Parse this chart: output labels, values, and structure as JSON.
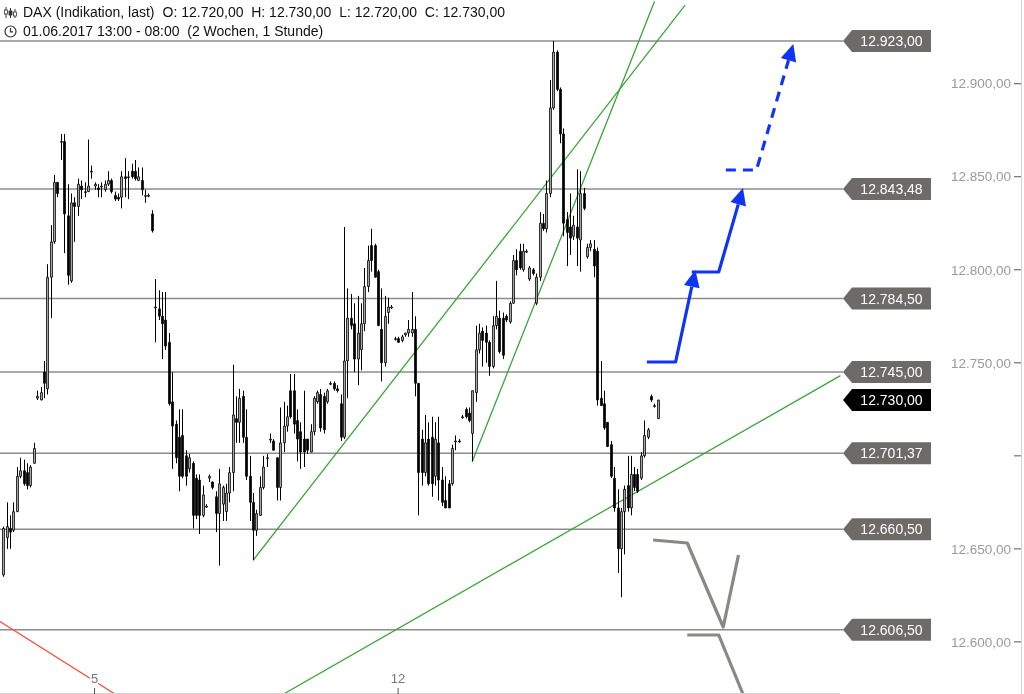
{
  "chart_data": {
    "type": "candlestick",
    "title": "DAX (Indikation, last)",
    "subtitle": "01.06.2017 13:00 - 08:00  (2 Wochen, 1 Stunde)",
    "annotations": [
      "O: 12.720,00  H: 12.730,00  L: 12.720,00  C: 12.730,00",
      "12.730,00"
    ],
    "color": "#000000",
    "x": [
      2.9,
      2.98,
      3.06,
      3.13,
      3.21,
      3.29,
      3.37,
      3.44,
      3.52,
      3.6,
      3.68,
      3.76,
      3.83,
      3.91,
      3.99,
      4.07,
      4.14,
      4.22,
      4.3,
      4.38,
      4.46,
      4.53,
      4.61,
      4.69,
      4.77,
      4.84,
      4.92,
      5.0,
      5.08,
      5.16,
      5.23,
      5.31,
      5.39,
      5.47,
      5.54,
      5.62,
      5.7,
      5.78,
      5.86,
      5.93,
      6.01,
      6.09,
      6.17,
      6.24,
      6.32,
      6.4,
      6.48,
      6.56,
      6.63,
      6.71,
      6.79,
      6.87,
      6.94,
      7.02,
      7.1,
      7.18,
      7.26,
      7.33,
      7.41,
      7.49,
      7.57,
      7.64,
      7.72,
      7.8,
      7.88,
      7.96,
      8.03,
      8.11,
      8.19,
      8.27,
      8.34,
      8.42,
      8.5,
      8.58,
      8.66,
      8.73,
      8.81,
      8.89,
      8.97,
      9.04,
      9.12,
      9.2,
      9.28,
      9.36,
      9.43,
      9.51,
      9.59,
      9.67,
      9.74,
      9.82,
      9.9,
      9.98,
      10.06,
      10.13,
      10.21,
      10.29,
      10.37,
      10.44,
      10.52,
      10.6,
      10.68,
      10.76,
      10.83,
      10.91,
      10.99,
      11.07,
      11.14,
      11.22,
      11.3,
      11.38,
      11.46,
      11.53,
      11.61,
      11.69,
      11.77,
      11.84,
      11.92,
      12.0,
      12.08,
      12.16,
      12.23,
      12.31,
      12.39,
      12.47,
      12.54,
      12.62,
      12.7,
      12.78,
      12.86,
      12.93,
      13.01,
      13.09,
      13.17,
      13.24,
      13.32,
      13.4,
      13.48,
      13.56,
      13.63,
      13.71,
      13.79,
      13.87,
      13.94,
      14.02,
      14.1,
      14.18,
      14.26,
      14.33,
      14.41,
      14.49,
      14.57,
      14.64,
      14.72,
      14.8,
      14.88,
      14.96,
      15.03,
      15.11,
      15.19,
      15.27,
      15.34,
      15.42,
      15.5,
      15.58,
      15.66,
      15.73,
      15.81,
      15.89,
      15.97,
      16.04,
      16.12,
      16.2,
      16.28,
      16.36,
      16.43,
      16.51,
      16.59,
      16.67,
      16.74,
      16.82,
      16.9,
      16.98,
      17.06,
      17.13,
      17.21,
      17.29,
      17.37,
      17.44,
      17.52,
      17.6,
      17.68,
      17.76,
      17.83,
      17.91,
      17.99
    ],
    "ohlc": [
      [
        12636,
        12662,
        12635,
        12661
      ],
      [
        12656,
        12675,
        12650,
        12662
      ],
      [
        12661,
        12668,
        12650,
        12659
      ],
      [
        12660,
        12675,
        12659,
        12670
      ],
      [
        12670,
        12694,
        12670,
        12689
      ],
      [
        12689,
        12699,
        12688,
        12692
      ],
      [
        12692,
        12698,
        12684,
        12685
      ],
      [
        12691,
        12696,
        12682,
        12684
      ],
      [
        12684,
        12695,
        12683,
        12694
      ],
      [
        12696,
        12707,
        12696,
        12704
      ],
      [
        12731,
        12735,
        12730,
        12732
      ],
      [
        12730,
        12737,
        12730,
        12734
      ],
      [
        12745,
        12751,
        12731,
        12739
      ],
      [
        12736,
        12803,
        12733,
        12796
      ],
      [
        12796,
        12824,
        12774,
        12815
      ],
      [
        12815,
        12851,
        12814,
        12847
      ],
      [
        12847,
        12847,
        12839,
        12841
      ],
      [
        12869,
        12873,
        12859,
        12869
      ],
      [
        12869,
        12873,
        12809,
        12830
      ],
      [
        12829,
        12846,
        12792,
        12797
      ],
      [
        12794,
        12841,
        12793,
        12836
      ],
      [
        12836,
        12839,
        12815,
        12834
      ],
      [
        12834,
        12849,
        12829,
        12846
      ],
      [
        12845,
        12848,
        12838,
        12843
      ],
      [
        12842,
        12847,
        12839,
        12842
      ],
      [
        12842,
        12870,
        12842,
        12845
      ],
      [
        12853,
        12856,
        12849,
        12853
      ],
      [
        12845,
        12847,
        12843,
        12846
      ],
      [
        12844,
        12846,
        12839,
        12843
      ],
      [
        12845,
        12847,
        12839,
        12845
      ],
      [
        12843,
        12848,
        12842,
        12846
      ],
      [
        12846,
        12853,
        12845,
        12848
      ],
      [
        12848,
        12849,
        12841,
        12842
      ],
      [
        12840,
        12842,
        12837,
        12838
      ],
      [
        12839,
        12841,
        12837,
        12838
      ],
      [
        12839,
        12853,
        12833,
        12850
      ],
      [
        12850,
        12860,
        12839,
        12849
      ],
      [
        12850,
        12853,
        12838,
        12850
      ],
      [
        12853,
        12857,
        12849,
        12850
      ],
      [
        12853,
        12859,
        12848,
        12849
      ],
      [
        12848,
        12855,
        12848,
        12850
      ],
      [
        12848,
        12855,
        12840,
        12843
      ],
      [
        12840,
        12843,
        12836,
        12840
      ],
      [
        12840,
        12841,
        12839,
        12840
      ],
      [
        12830,
        12832,
        12820,
        12821
      ],
      [
        12780,
        12795,
        12761,
        12780
      ],
      [
        12779,
        12789,
        12773,
        12775
      ],
      [
        12775,
        12788,
        12752,
        12771
      ],
      [
        12773,
        12788,
        12757,
        12759
      ],
      [
        12761,
        12766,
        12727,
        12728
      ],
      [
        12729,
        12745,
        12693,
        12716
      ],
      [
        12717,
        12719,
        12696,
        12699
      ],
      [
        12710,
        12725,
        12681,
        12689
      ],
      [
        12711,
        12725,
        12688,
        12689
      ],
      [
        12700,
        12703,
        12684,
        12689
      ],
      [
        12693,
        12701,
        12691,
        12699
      ],
      [
        12696,
        12697,
        12661,
        12668
      ],
      [
        12688,
        12690,
        12666,
        12668
      ],
      [
        12687,
        12690,
        12658,
        12668
      ],
      [
        12668,
        12684,
        12667,
        12679
      ],
      [
        12673,
        12674,
        12672,
        12673
      ],
      [
        12688,
        12690,
        12686,
        12689
      ],
      [
        12686,
        12686,
        12682,
        12683
      ],
      [
        12678,
        12681,
        12659,
        12669
      ],
      [
        12669,
        12693,
        12641,
        12685
      ],
      [
        12674,
        12684,
        12665,
        12683
      ],
      [
        12670,
        12685,
        12665,
        12680
      ],
      [
        12680,
        12694,
        12675,
        12691
      ],
      [
        12691,
        12749,
        12681,
        12722
      ],
      [
        12720,
        12732,
        12707,
        12718
      ],
      [
        12718,
        12736,
        12707,
        12731
      ],
      [
        12732,
        12735,
        12707,
        12710
      ],
      [
        12710,
        12725,
        12687,
        12689
      ],
      [
        12689,
        12700,
        12665,
        12675
      ],
      [
        12675,
        12680,
        12644,
        12660
      ],
      [
        12660,
        12671,
        12657,
        12669
      ],
      [
        12668,
        12689,
        12668,
        12683
      ],
      [
        12683,
        12700,
        12682,
        12694
      ],
      [
        12699,
        12701,
        12694,
        12699
      ],
      [
        12709,
        12712,
        12707,
        12709
      ],
      [
        12708,
        12709,
        12703,
        12703
      ],
      [
        12699,
        12699,
        12676,
        12683
      ],
      [
        12683,
        12726,
        12676,
        12707
      ],
      [
        12707,
        12729,
        12702,
        12716
      ],
      [
        12716,
        12727,
        12713,
        12721
      ],
      [
        12735,
        12744,
        12720,
        12721
      ],
      [
        12735,
        12744,
        12712,
        12717
      ],
      [
        12719,
        12725,
        12697,
        12709
      ],
      [
        12713,
        12718,
        12693,
        12702
      ],
      [
        12709,
        12735,
        12694,
        12702
      ],
      [
        12709,
        12709,
        12701,
        12703
      ],
      [
        12702,
        12717,
        12702,
        12713
      ],
      [
        12713,
        12732,
        12711,
        12731
      ],
      [
        12729,
        12735,
        12728,
        12734
      ],
      [
        12733,
        12736,
        12713,
        12715
      ],
      [
        12732,
        12734,
        12712,
        12714
      ],
      [
        12729,
        12736,
        12728,
        12735
      ],
      [
        12739,
        12740,
        12738,
        12739
      ],
      [
        12739,
        12740,
        12735,
        12736
      ],
      [
        12736,
        12738,
        12734,
        12735
      ],
      [
        12728,
        12733,
        12708,
        12710
      ],
      [
        12710,
        12823,
        12709,
        12751
      ],
      [
        12751,
        12790,
        12731,
        12774
      ],
      [
        12774,
        12787,
        12768,
        12770
      ],
      [
        12771,
        12782,
        12745,
        12752
      ],
      [
        12752,
        12786,
        12738,
        12766
      ],
      [
        12757,
        12782,
        12746,
        12771
      ],
      [
        12771,
        12801,
        12767,
        12791
      ],
      [
        12791,
        12813,
        12788,
        12805
      ],
      [
        12813,
        12822,
        12799,
        12805
      ],
      [
        12813,
        12814,
        12796,
        12796
      ],
      [
        12799,
        12800,
        12770,
        12770
      ],
      [
        12768,
        12790,
        12740,
        12750
      ],
      [
        12750,
        12786,
        12748,
        12775
      ],
      [
        12777,
        12785,
        12771,
        12780
      ],
      [
        12780,
        12781,
        12779,
        12780
      ],
      [
        12763,
        12764,
        12762,
        12763
      ],
      [
        12763,
        12764,
        12761,
        12761
      ],
      [
        12762,
        12765,
        12761,
        12764
      ],
      [
        12765,
        12766,
        12764,
        12766
      ],
      [
        12766,
        12773,
        12764,
        12768
      ],
      [
        12766,
        12788,
        12764,
        12768
      ],
      [
        12768,
        12775,
        12732,
        12739
      ],
      [
        12739,
        12739,
        12668,
        12691
      ],
      [
        12709,
        12714,
        12684,
        12691
      ],
      [
        12691,
        12722,
        12689,
        12707
      ],
      [
        12709,
        12718,
        12684,
        12685
      ],
      [
        12710,
        12721,
        12678,
        12685
      ],
      [
        12689,
        12718,
        12684,
        12709
      ],
      [
        12707,
        12721,
        12676,
        12687
      ],
      [
        12687,
        12694,
        12673,
        12675
      ],
      [
        12676,
        12689,
        12672,
        12672
      ],
      [
        12685,
        12687,
        12672,
        12672
      ],
      [
        12685,
        12706,
        12684,
        12704
      ],
      [
        12708,
        12711,
        12703,
        12708
      ],
      [
        12708,
        12709,
        12707,
        12708
      ],
      [
        12721,
        12722,
        12720,
        12721
      ],
      [
        12725,
        12726,
        12720,
        12721
      ],
      [
        12723,
        12726,
        12718,
        12719
      ],
      [
        12712,
        12735,
        12697,
        12735
      ],
      [
        12734,
        12770,
        12729,
        12757
      ],
      [
        12757,
        12771,
        12755,
        12766
      ],
      [
        12767,
        12769,
        12748,
        12762
      ],
      [
        12766,
        12770,
        12750,
        12761
      ],
      [
        12761,
        12762,
        12743,
        12748
      ],
      [
        12748,
        12775,
        12747,
        12770
      ],
      [
        12770,
        12794,
        12768,
        12775
      ],
      [
        12774,
        12778,
        12755,
        12756
      ],
      [
        12774,
        12777,
        12752,
        12754
      ],
      [
        12775,
        12776,
        12772,
        12773
      ],
      [
        12772,
        12783,
        12771,
        12782
      ],
      [
        12782,
        12808,
        12782,
        12805
      ],
      [
        12805,
        12811,
        12797,
        12800
      ],
      [
        12810,
        12814,
        12800,
        12801
      ],
      [
        12800,
        12814,
        12799,
        12810
      ],
      [
        12810,
        12811,
        12809,
        12810
      ],
      [
        12795,
        12802,
        12794,
        12801
      ],
      [
        12800,
        12801,
        12797,
        12798
      ],
      [
        12782,
        12798,
        12781,
        12796
      ],
      [
        12796,
        12831,
        12794,
        12825
      ],
      [
        12825,
        12830,
        12821,
        12822
      ],
      [
        12822,
        12848,
        12820,
        12841
      ],
      [
        12841,
        12902,
        12839,
        12887
      ],
      [
        12887,
        12923,
        12886,
        12917
      ],
      [
        12917,
        12918,
        12896,
        12897
      ],
      [
        12897,
        12898,
        12868,
        12873
      ],
      [
        12873,
        12876,
        12818,
        12825
      ],
      [
        12827,
        12831,
        12802,
        12820
      ],
      [
        12823,
        12841,
        12808,
        12817
      ],
      [
        12818,
        12829,
        12816,
        12824
      ],
      [
        12823,
        12854,
        12802,
        12817
      ],
      [
        12816,
        12853,
        12799,
        12841
      ],
      [
        12841,
        12844,
        12832,
        12833
      ],
      [
        12807,
        12814,
        12806,
        12812
      ],
      [
        12812,
        12816,
        12810,
        12814
      ],
      [
        12811,
        12816,
        12796,
        12802
      ],
      [
        12810,
        12812,
        12727,
        12730
      ],
      [
        12731,
        12751,
        12727,
        12727
      ],
      [
        12728,
        12735,
        12714,
        12715
      ],
      [
        12718,
        12718,
        12705,
        12705
      ],
      [
        12706,
        12708,
        12688,
        12689
      ],
      [
        12688,
        12694,
        12670,
        12672
      ],
      [
        12672,
        12682,
        12637,
        12650
      ],
      [
        12650,
        12672,
        12624,
        12670
      ],
      [
        12670,
        12684,
        12647,
        12682
      ],
      [
        12684,
        12700,
        12670,
        12672
      ],
      [
        12672,
        12700,
        12668,
        12690
      ],
      [
        12690,
        12694,
        12681,
        12683
      ],
      [
        12690,
        12693,
        12680,
        12681
      ],
      [
        12688,
        12702,
        12687,
        12700
      ],
      [
        12700,
        12719,
        12699,
        12711
      ],
      [
        12710,
        12715,
        12709,
        12714
      ],
      [
        12732,
        12733,
        12729,
        12730
      ],
      [
        12727,
        12728,
        12726,
        12727
      ],
      [
        12720,
        12730,
        12720,
        12730
      ]
    ],
    "series": [
      {
        "type": "line",
        "color": "#3aa63a",
        "x": [
          8.66,
          18.61
        ],
        "values": [
          12644,
          12942
        ]
      },
      {
        "type": "line",
        "color": "#3aa63a",
        "x": [
          13.71,
          17.91
        ],
        "values": [
          12697,
          12944
        ]
      },
      {
        "type": "line",
        "color": "#3aa63a",
        "x": [
          9.36,
          22.19
        ],
        "values": [
          12572,
          12743
        ]
      },
      {
        "type": "line",
        "color": "#ff4a3d",
        "x": [
          2.82,
          5.47
        ],
        "values": [
          12611,
          12572
        ]
      }
    ],
    "xlim": [
      2.82,
      22.19
    ],
    "xticks": [
      5,
      12
    ],
    "ylim": [
      12572,
      12945
    ],
    "yticks": [
      {
        "value": 12600,
        "label": "12.600,00"
      },
      {
        "value": 12650,
        "label": "12.650,00"
      },
      {
        "value": 12700,
        "label": null
      },
      {
        "value": 12750,
        "label": "12.750,00"
      },
      {
        "value": 12800,
        "label": "12.800,00"
      },
      {
        "value": 12850,
        "label": "12.850,00"
      },
      {
        "value": 12900,
        "label": "12.900,00"
      }
    ],
    "ref_lines": [
      {
        "axis": "y",
        "value": 12923,
        "label": "12.923,00",
        "color": "#8c8c8c"
      },
      {
        "axis": "y",
        "value": 12843.48,
        "label": "12.843,48",
        "color": "#8c8c8c"
      },
      {
        "axis": "y",
        "value": 12784.5,
        "label": "12.784,50",
        "color": "#8c8c8c"
      },
      {
        "axis": "y",
        "value": 12745,
        "label": "12.745,00",
        "color": "#8c8c8c"
      },
      {
        "axis": "y",
        "value": 12701.37,
        "label": "12.701,37",
        "color": "#8c8c8c"
      },
      {
        "axis": "y",
        "value": 12660.5,
        "label": "12.660,50",
        "color": "#8c8c8c"
      },
      {
        "axis": "y",
        "value": 12606.5,
        "label": "12.606,50",
        "color": "#8c8c8c"
      }
    ]
  }
}
